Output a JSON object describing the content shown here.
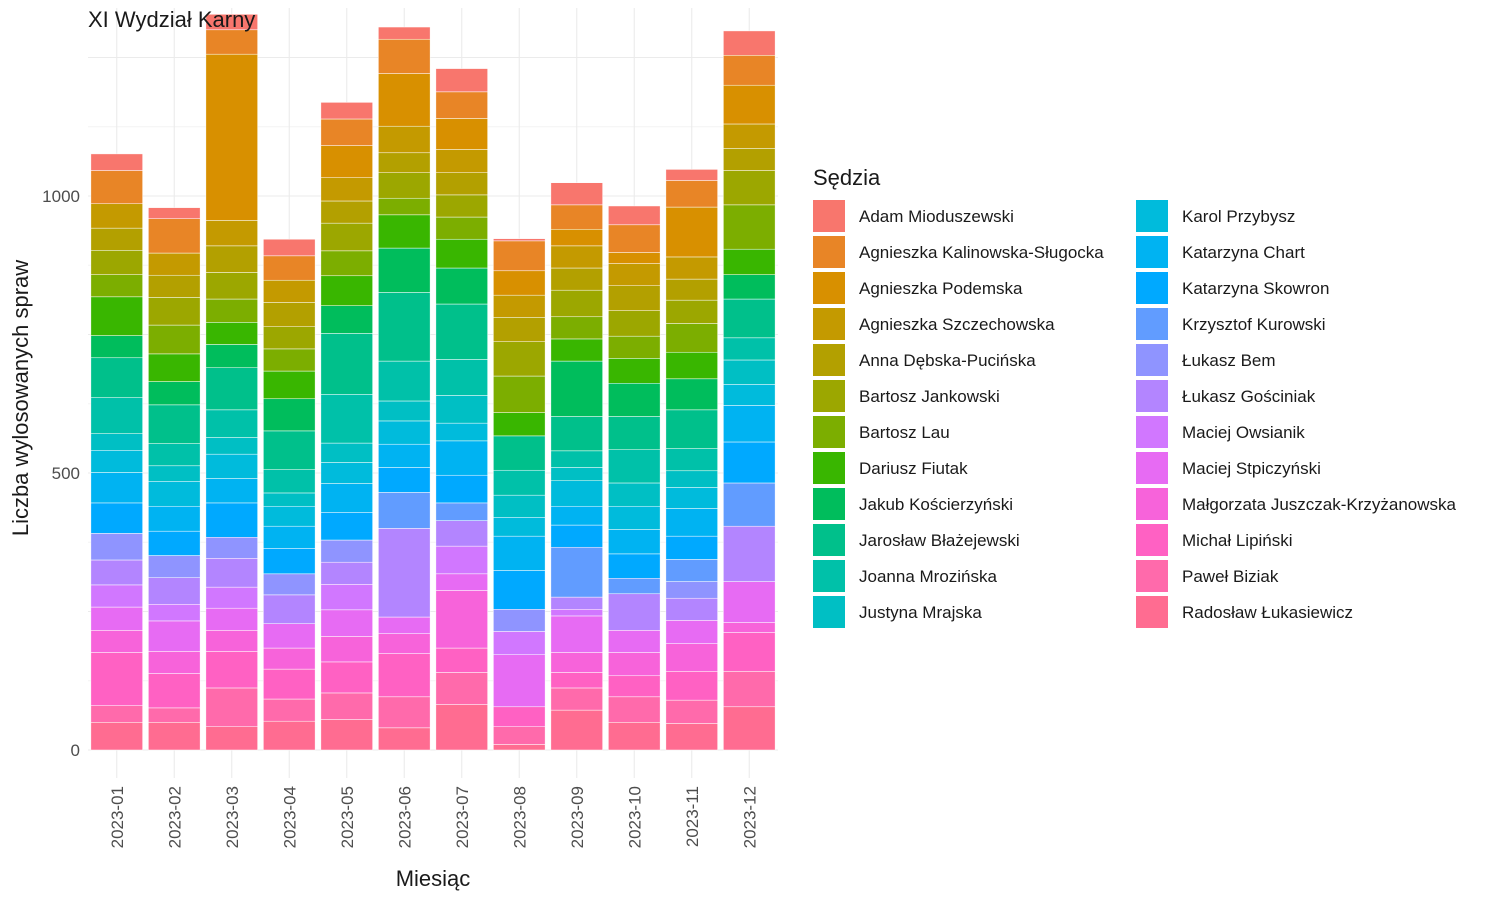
{
  "chart_data": {
    "type": "bar",
    "stacked": true,
    "title": "XI Wydział Karny",
    "xlabel": "Miesiąc",
    "ylabel": "Liczba wylosowanych spraw",
    "ylim": [
      0,
      1300
    ],
    "y_ticks": [
      0,
      500,
      1000
    ],
    "grid": true,
    "legend_title": "Sędzia",
    "legend_position": "right",
    "categories": [
      "2023-01",
      "2023-02",
      "2023-03",
      "2023-04",
      "2023-05",
      "2023-06",
      "2023-07",
      "2023-08",
      "2023-09",
      "2023-10",
      "2023-11",
      "2023-12"
    ],
    "series": [
      {
        "name": "Radosław Łukasiewicz",
        "color": "#FF6C91",
        "values": [
          50,
          50,
          42,
          52,
          55,
          40,
          82,
          10,
          72,
          50,
          48,
          78
        ]
      },
      {
        "name": "Paweł Biziak",
        "color": "#FF6AAB",
        "values": [
          30,
          26,
          70,
          40,
          48,
          56,
          58,
          32,
          40,
          46,
          42,
          64
        ]
      },
      {
        "name": "Michał Lipiński",
        "color": "#FF61C3",
        "values": [
          96,
          62,
          66,
          54,
          56,
          78,
          44,
          36,
          28,
          38,
          52,
          70
        ]
      },
      {
        "name": "Małgorzata Juszczak-Krzyżanowska",
        "color": "#F763DA",
        "values": [
          40,
          40,
          38,
          38,
          46,
          36,
          104,
          0,
          36,
          42,
          50,
          18
        ]
      },
      {
        "name": "Maciej Stpiczyński",
        "color": "#E76BF3",
        "values": [
          42,
          55,
          40,
          44,
          48,
          30,
          30,
          94,
          66,
          40,
          42,
          74
        ]
      },
      {
        "name": "Maciej Owsianik",
        "color": "#D177FF",
        "values": [
          40,
          30,
          38,
          0,
          46,
          0,
          50,
          42,
          12,
          0,
          0,
          0
        ]
      },
      {
        "name": "Łukasz Gościniak",
        "color": "#B385FF",
        "values": [
          45,
          48,
          52,
          52,
          40,
          160,
          46,
          0,
          22,
          66,
          40,
          100
        ]
      },
      {
        "name": "Łukasz Bem",
        "color": "#8F94FF",
        "values": [
          48,
          40,
          38,
          38,
          40,
          0,
          0,
          40,
          0,
          0,
          30,
          0
        ]
      },
      {
        "name": "Krzysztof Kurowski",
        "color": "#619CFF",
        "values": [
          0,
          0,
          0,
          0,
          0,
          65,
          32,
          0,
          90,
          28,
          40,
          78
        ]
      },
      {
        "name": "Katarzyna Skowron",
        "color": "#00A9FF",
        "values": [
          55,
          44,
          62,
          46,
          50,
          45,
          50,
          70,
          40,
          44,
          42,
          74
        ]
      },
      {
        "name": "Katarzyna Chart",
        "color": "#00B3F2",
        "values": [
          55,
          45,
          44,
          40,
          52,
          42,
          62,
          62,
          34,
          44,
          50,
          66
        ]
      },
      {
        "name": "Karol Przybysz",
        "color": "#00BBDC",
        "values": [
          40,
          45,
          44,
          36,
          38,
          42,
          32,
          34,
          46,
          42,
          38,
          38
        ]
      },
      {
        "name": "Justyna Mrajska",
        "color": "#00BFC4",
        "values": [
          30,
          28,
          30,
          24,
          35,
          36,
          50,
          40,
          24,
          42,
          30,
          44
        ]
      },
      {
        "name": "Joanna Mrozińska",
        "color": "#00C1A9",
        "values": [
          65,
          40,
          50,
          42,
          88,
          72,
          65,
          45,
          30,
          60,
          40,
          40
        ]
      },
      {
        "name": "Jarosław Błażejewski",
        "color": "#00C08B",
        "values": [
          72,
          70,
          76,
          70,
          110,
          124,
          100,
          62,
          62,
          60,
          70,
          70
        ]
      },
      {
        "name": "Jakub Kościerzyński",
        "color": "#00BD5C",
        "values": [
          40,
          42,
          42,
          58,
          50,
          80,
          65,
          0,
          100,
          60,
          56,
          44
        ]
      },
      {
        "name": "Dariusz Fiutak",
        "color": "#39B600",
        "values": [
          70,
          50,
          40,
          50,
          54,
          60,
          52,
          42,
          40,
          45,
          48,
          46
        ]
      },
      {
        "name": "Bartosz Lau",
        "color": "#7CAE00",
        "values": [
          40,
          52,
          42,
          40,
          45,
          30,
          40,
          66,
          40,
          40,
          52,
          80
        ]
      },
      {
        "name": "Bartosz Jankowski",
        "color": "#9CA700",
        "values": [
          44,
          50,
          48,
          40,
          50,
          46,
          40,
          62,
          48,
          46,
          42,
          62
        ]
      },
      {
        "name": "Anna Dębska-Pucińska",
        "color": "#B3A000",
        "values": [
          40,
          40,
          48,
          44,
          40,
          36,
          40,
          44,
          40,
          45,
          38,
          40
        ]
      },
      {
        "name": "Agnieszka Szczechowska",
        "color": "#C49A00",
        "values": [
          44,
          40,
          46,
          40,
          42,
          48,
          42,
          40,
          40,
          40,
          40,
          44
        ]
      },
      {
        "name": "Agnieszka Podemska",
        "color": "#D89000",
        "values": [
          0,
          0,
          300,
          0,
          58,
          95,
          56,
          44,
          30,
          20,
          90,
          70
        ]
      },
      {
        "name": "Agnieszka Kalinowska-Sługocka",
        "color": "#E88526",
        "values": [
          60,
          62,
          44,
          44,
          48,
          62,
          48,
          54,
          44,
          50,
          48,
          54
        ]
      },
      {
        "name": "Adam Mioduszewski",
        "color": "#F8766D",
        "values": [
          30,
          20,
          28,
          30,
          30,
          22,
          42,
          4,
          40,
          34,
          20,
          44
        ]
      }
    ]
  },
  "legend_order": [
    "Adam Mioduszewski",
    "Agnieszka Kalinowska-Sługocka",
    "Agnieszka Podemska",
    "Agnieszka Szczechowska",
    "Anna Dębska-Pucińska",
    "Bartosz Jankowski",
    "Bartosz Lau",
    "Dariusz Fiutak",
    "Jakub Kościerzyński",
    "Jarosław Błażejewski",
    "Joanna Mrozińska",
    "Justyna Mrajska",
    "Karol Przybysz",
    "Katarzyna Chart",
    "Katarzyna Skowron",
    "Krzysztof Kurowski",
    "Łukasz Bem",
    "Łukasz Gościniak",
    "Maciej Owsianik",
    "Maciej Stpiczyński",
    "Małgorzata Juszczak-Krzyżanowska",
    "Michał Lipiński",
    "Paweł Biziak",
    "Radosław Łukasiewicz"
  ]
}
